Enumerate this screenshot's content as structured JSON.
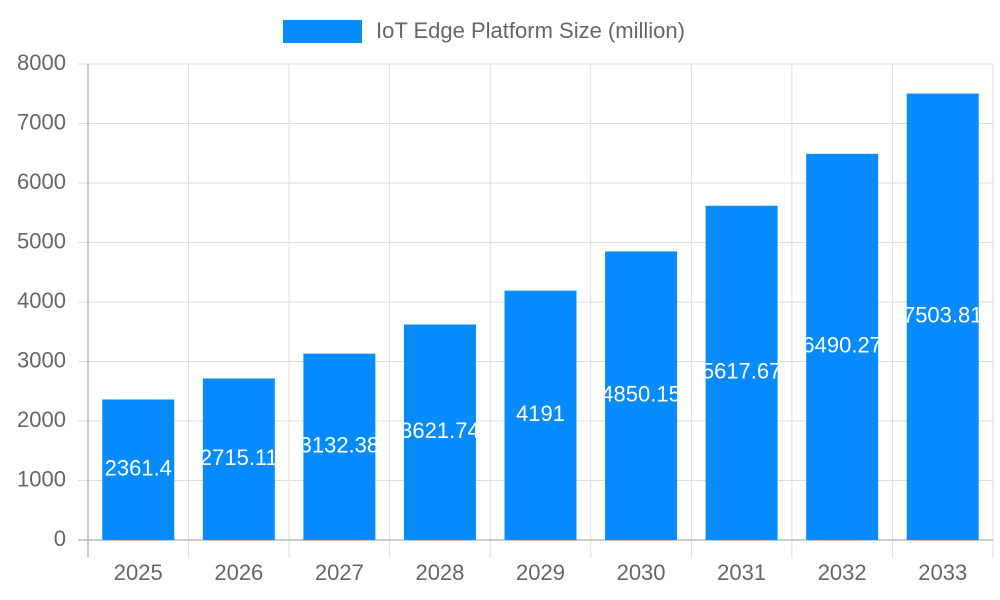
{
  "chart_data": {
    "type": "bar",
    "categories": [
      "2025",
      "2026",
      "2027",
      "2028",
      "2029",
      "2030",
      "2031",
      "2032",
      "2033"
    ],
    "series": [
      {
        "name": "IoT Edge Platform Size (million)",
        "color": "#078bff",
        "values": [
          2361.4,
          2715.11,
          3132.38,
          3621.74,
          4191,
          4850.15,
          5617.67,
          6490.27,
          7503.81
        ]
      }
    ],
    "ylim": [
      0,
      8000
    ],
    "yticks": [
      0,
      1000,
      2000,
      3000,
      4000,
      5000,
      6000,
      7000,
      8000
    ],
    "grid": true,
    "legend": "top"
  }
}
